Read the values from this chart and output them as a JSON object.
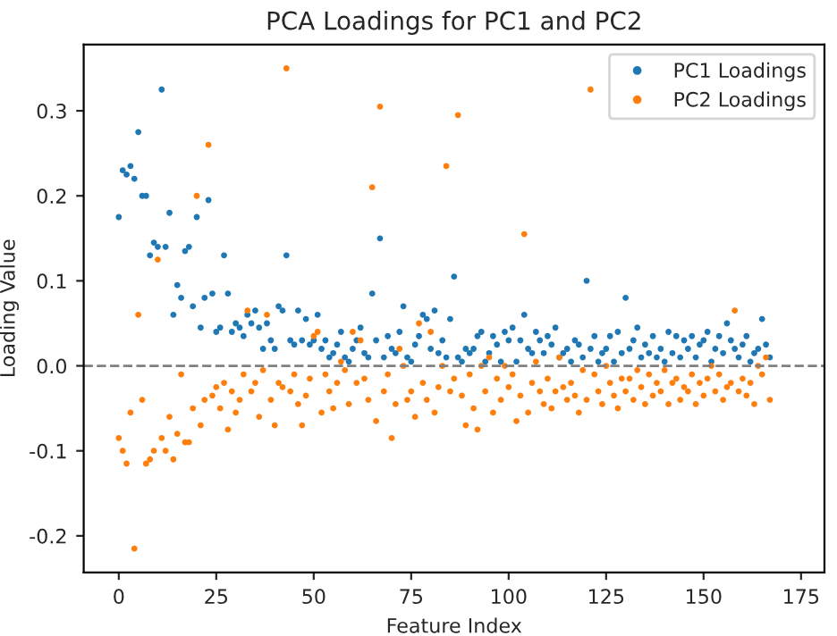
{
  "chart_data": {
    "type": "scatter",
    "title": "PCA Loadings for PC1 and PC2",
    "xlabel": "Feature Index",
    "ylabel": "Loading Value",
    "x": [
      0,
      1,
      2,
      3,
      4,
      5,
      6,
      7,
      8,
      9,
      10,
      11,
      12,
      13,
      14,
      15,
      16,
      17,
      18,
      19,
      20,
      21,
      22,
      23,
      24,
      25,
      26,
      27,
      28,
      29,
      30,
      31,
      32,
      33,
      34,
      35,
      36,
      37,
      38,
      39,
      40,
      41,
      42,
      43,
      44,
      45,
      46,
      47,
      48,
      49,
      50,
      51,
      52,
      53,
      54,
      55,
      56,
      57,
      58,
      59,
      60,
      61,
      62,
      63,
      64,
      65,
      66,
      67,
      68,
      69,
      70,
      71,
      72,
      73,
      74,
      75,
      76,
      77,
      78,
      79,
      80,
      81,
      82,
      83,
      84,
      85,
      86,
      87,
      88,
      89,
      90,
      91,
      92,
      93,
      94,
      95,
      96,
      97,
      98,
      99,
      100,
      101,
      102,
      103,
      104,
      105,
      106,
      107,
      108,
      109,
      110,
      111,
      112,
      113,
      114,
      115,
      116,
      117,
      118,
      119,
      120,
      121,
      122,
      123,
      124,
      125,
      126,
      127,
      128,
      129,
      130,
      131,
      132,
      133,
      134,
      135,
      136,
      137,
      138,
      139,
      140,
      141,
      142,
      143,
      144,
      145,
      146,
      147,
      148,
      149,
      150,
      151,
      152,
      153,
      154,
      155,
      156,
      157,
      158,
      159,
      160,
      161,
      162,
      163,
      164,
      165,
      166,
      167
    ],
    "series": [
      {
        "name": "PC1 Loadings",
        "color": "#1f77b4",
        "values": [
          0.175,
          0.23,
          0.225,
          0.235,
          0.22,
          0.275,
          0.2,
          0.2,
          0.13,
          0.145,
          0.14,
          0.325,
          0.14,
          0.18,
          0.06,
          0.095,
          0.08,
          0.135,
          0.14,
          0.07,
          0.175,
          0.045,
          0.08,
          0.195,
          0.085,
          0.04,
          0.045,
          0.13,
          0.085,
          0.04,
          0.05,
          0.045,
          0.035,
          0.06,
          0.05,
          0.065,
          0.045,
          0.02,
          0.05,
          0.03,
          0.02,
          0.07,
          0.065,
          0.13,
          0.03,
          0.025,
          0.065,
          0.03,
          0.055,
          0.025,
          0.03,
          0.06,
          0.02,
          0.03,
          0.01,
          0.015,
          0.025,
          0.04,
          0.01,
          0.005,
          0.02,
          0.03,
          0.045,
          0.015,
          0.01,
          0.085,
          0.03,
          0.15,
          0.01,
          0.035,
          0.02,
          0.015,
          0.04,
          0.07,
          0.01,
          0.005,
          0.025,
          0.035,
          0.06,
          0.055,
          0.02,
          0.065,
          0.015,
          0.03,
          0.01,
          0.055,
          0.105,
          0.01,
          0.005,
          0.02,
          0.015,
          0.02,
          0.035,
          0.04,
          0.005,
          0.015,
          0.035,
          0.025,
          0.005,
          0.04,
          0.03,
          0.045,
          0.005,
          0.03,
          0.06,
          0.02,
          0.015,
          0.04,
          0.03,
          0.015,
          0.035,
          0.025,
          0.045,
          0.01,
          0.015,
          0.02,
          0.005,
          0.03,
          0.025,
          0.01,
          0.1,
          0.02,
          0.035,
          0.005,
          0.015,
          0.02,
          0.035,
          0.005,
          0.04,
          0.015,
          0.08,
          0.02,
          0.03,
          0.045,
          0.01,
          0.025,
          0.015,
          0.035,
          0.01,
          0.02,
          0.005,
          0.04,
          0.015,
          0.035,
          0.01,
          0.03,
          0.02,
          0.035,
          0.01,
          0.025,
          0.03,
          0.04,
          0.005,
          0.02,
          0.035,
          0.015,
          0.05,
          0.03,
          0.02,
          0.01,
          0.025,
          0.035,
          0.005,
          0.015,
          0.02,
          0.055,
          0.025,
          0.01
        ]
      },
      {
        "name": "PC2 Loadings",
        "color": "#ff7f0e",
        "values": [
          -0.085,
          -0.1,
          -0.115,
          -0.055,
          -0.215,
          0.06,
          -0.04,
          -0.115,
          -0.11,
          -0.1,
          0.125,
          -0.085,
          -0.1,
          -0.06,
          -0.11,
          -0.08,
          -0.01,
          -0.09,
          -0.09,
          -0.05,
          0.2,
          -0.07,
          -0.04,
          0.26,
          -0.035,
          -0.025,
          -0.05,
          -0.02,
          -0.075,
          -0.03,
          -0.055,
          -0.04,
          -0.01,
          0.065,
          -0.03,
          -0.02,
          -0.06,
          -0.005,
          0.06,
          -0.04,
          -0.07,
          -0.02,
          -0.025,
          0.35,
          -0.03,
          -0.01,
          -0.045,
          -0.07,
          -0.035,
          -0.015,
          0.035,
          0.04,
          -0.055,
          -0.01,
          -0.03,
          -0.05,
          -0.02,
          0.005,
          -0.005,
          -0.045,
          0.04,
          -0.02,
          0.03,
          -0.015,
          -0.04,
          0.21,
          -0.065,
          0.305,
          -0.03,
          -0.01,
          -0.085,
          -0.045,
          0.02,
          0.0,
          -0.04,
          -0.03,
          -0.06,
          0.05,
          -0.02,
          -0.04,
          0.04,
          -0.055,
          -0.025,
          0.0,
          0.235,
          -0.03,
          -0.015,
          0.295,
          -0.035,
          -0.07,
          -0.01,
          -0.05,
          -0.075,
          0.0,
          -0.03,
          0.01,
          -0.055,
          -0.015,
          -0.04,
          0.0,
          -0.025,
          -0.01,
          -0.065,
          -0.035,
          0.155,
          -0.055,
          -0.02,
          0.005,
          -0.03,
          -0.045,
          -0.015,
          -0.05,
          -0.03,
          0.01,
          -0.025,
          -0.04,
          -0.02,
          -0.035,
          -0.055,
          -0.005,
          -0.04,
          0.325,
          -0.01,
          -0.03,
          -0.045,
          0.0,
          -0.02,
          -0.035,
          -0.05,
          -0.015,
          -0.03,
          -0.015,
          -0.04,
          -0.005,
          -0.025,
          -0.045,
          -0.01,
          -0.035,
          -0.02,
          -0.03,
          -0.005,
          -0.045,
          -0.02,
          -0.015,
          -0.04,
          -0.025,
          -0.03,
          -0.01,
          -0.045,
          -0.02,
          -0.035,
          -0.015,
          0.0,
          -0.03,
          -0.01,
          -0.04,
          -0.025,
          -0.02,
          0.065,
          -0.03,
          -0.015,
          -0.035,
          -0.02,
          -0.045,
          0.0,
          -0.01,
          0.01,
          -0.04
        ]
      }
    ],
    "xlim": [
      -9,
      181
    ],
    "ylim": [
      -0.243,
      0.378
    ],
    "xticks": [
      0,
      25,
      50,
      75,
      100,
      125,
      150,
      175
    ],
    "yticks": [
      {
        "value": -0.2,
        "label": "-0.2"
      },
      {
        "value": -0.1,
        "label": "-0.1"
      },
      {
        "value": 0,
        "label": "0.0"
      },
      {
        "value": 0.1,
        "label": "0.1"
      },
      {
        "value": 0.2,
        "label": "0.2"
      },
      {
        "value": 0.3,
        "label": "0.3"
      }
    ],
    "ref_lines": [
      {
        "axis": "y",
        "value": 0,
        "color": "#808080",
        "line_style": "dashed"
      }
    ],
    "marker": "circle",
    "legend": "top right",
    "grid": false
  }
}
